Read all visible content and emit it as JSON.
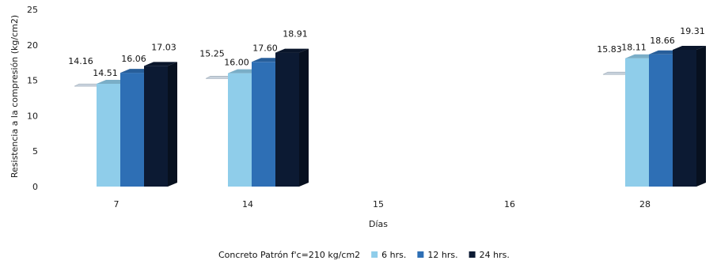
{
  "chart_data": {
    "type": "bar",
    "categories": [
      "7",
      "14",
      "15",
      "16",
      "28"
    ],
    "series": [
      {
        "name": "Concreto Patrón f'c=210 kg/cm2",
        "values": [
          14.16,
          15.25,
          null,
          null,
          15.83
        ]
      },
      {
        "name": "6 hrs.",
        "values": [
          14.51,
          16.0,
          null,
          null,
          18.11
        ]
      },
      {
        "name": "12 hrs.",
        "values": [
          16.06,
          17.6,
          null,
          null,
          18.66
        ]
      },
      {
        "name": "24 hrs.",
        "values": [
          17.03,
          18.91,
          null,
          null,
          19.31
        ]
      }
    ],
    "title": "",
    "xlabel": "Días",
    "ylabel": "Resistencia a la compresión (kg/cm2)",
    "ylim": [
      0,
      25
    ],
    "yticks": [
      0,
      5,
      10,
      15,
      20,
      25
    ],
    "value_labels": [
      [
        "14.16",
        "15.25",
        "",
        "",
        "15.83"
      ],
      [
        "14.51",
        "16.00",
        "",
        "",
        "18.11"
      ],
      [
        "16.06",
        "17.60",
        "",
        "",
        "18.66"
      ],
      [
        "17.03",
        "18.91",
        "",
        "",
        "19.31"
      ]
    ],
    "grid": false,
    "legend_position": "bottom",
    "colors": [
      "#d4dde6",
      "#8fcdea",
      "#2e6fb5",
      "#0c1a33"
    ]
  }
}
